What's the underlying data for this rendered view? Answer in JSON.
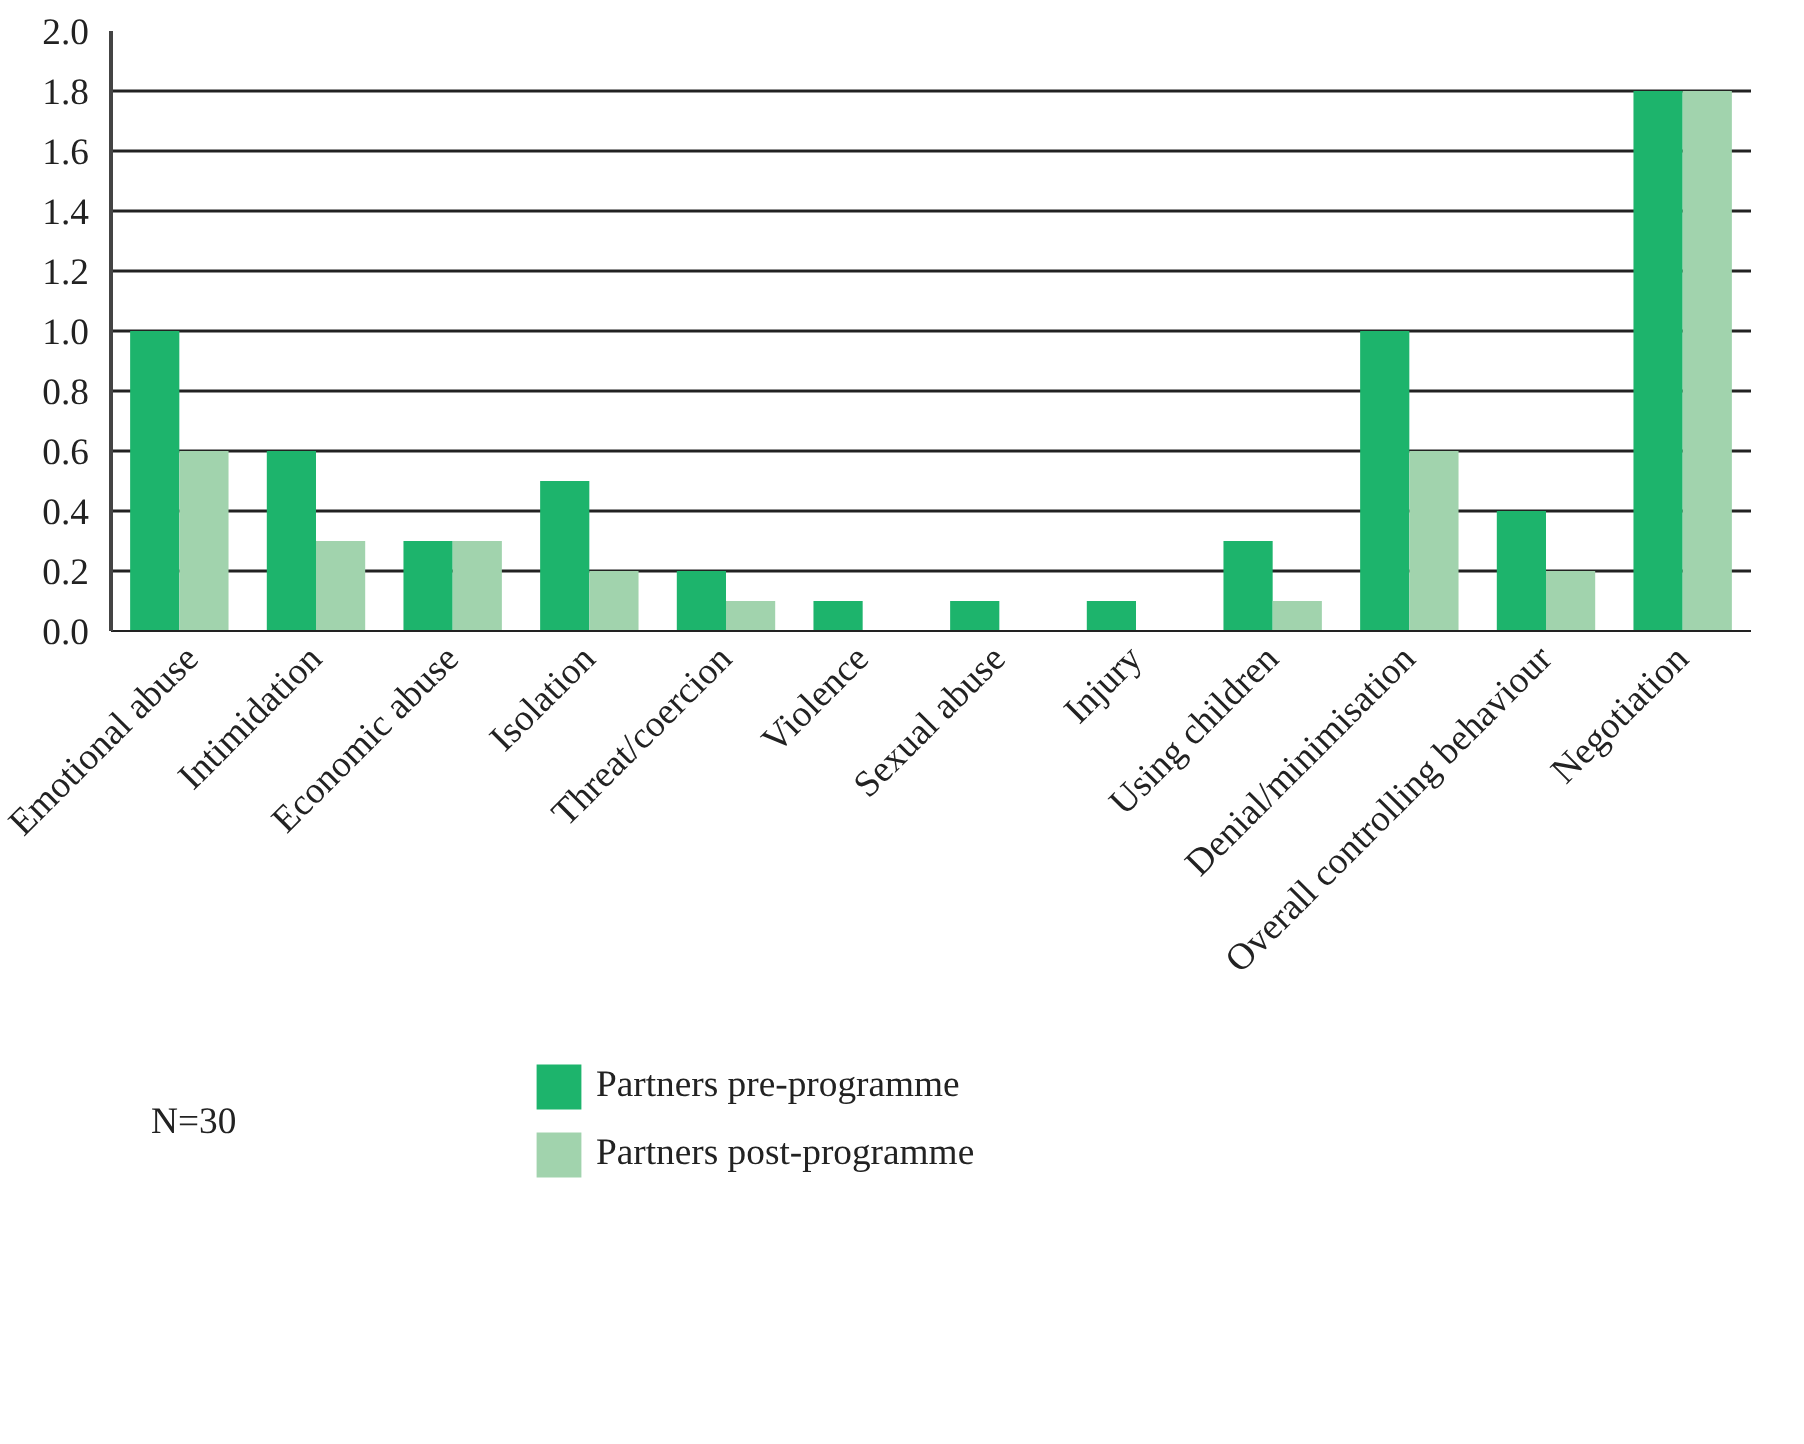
{
  "chart_data": {
    "type": "bar",
    "categories": [
      "Emotional abuse",
      "Intimidation",
      "Economic abuse",
      "Isolation",
      "Threat/coercion",
      "Violence",
      "Sexual abuse",
      "Injury",
      "Using children",
      "Denial/minimisation",
      "Overall controlling behaviour",
      "Negotiation"
    ],
    "series": [
      {
        "name": "Partners pre-programme",
        "color": "#1db46c",
        "values": [
          1.0,
          0.6,
          0.3,
          0.5,
          0.2,
          0.1,
          0.1,
          0.1,
          0.3,
          1.0,
          0.4,
          1.8
        ]
      },
      {
        "name": "Partners post-programme",
        "color": "#a1d3ad",
        "values": [
          0.6,
          0.3,
          0.3,
          0.2,
          0.1,
          0,
          0,
          0,
          0.1,
          0.6,
          0.2,
          1.8
        ]
      }
    ],
    "ylim": [
      0,
      2.0
    ],
    "yticks": [
      {
        "value": 0,
        "label": "0.0"
      },
      {
        "value": 0.2,
        "label": "0.2"
      },
      {
        "value": 0.4,
        "label": "0.4"
      },
      {
        "value": 0.6,
        "label": "0.6"
      },
      {
        "value": 0.8,
        "label": "0.8"
      },
      {
        "value": 1.0,
        "label": "1.0"
      },
      {
        "value": 1.2,
        "label": "1.2"
      },
      {
        "value": 1.4,
        "label": "1.4"
      },
      {
        "value": 1.6,
        "label": "1.6"
      },
      {
        "value": 1.8,
        "label": "1.8"
      },
      {
        "value": 2.0,
        "label": "2.0"
      }
    ],
    "grid": "y",
    "legend": "bottom",
    "annotations": [
      "N=30"
    ]
  }
}
